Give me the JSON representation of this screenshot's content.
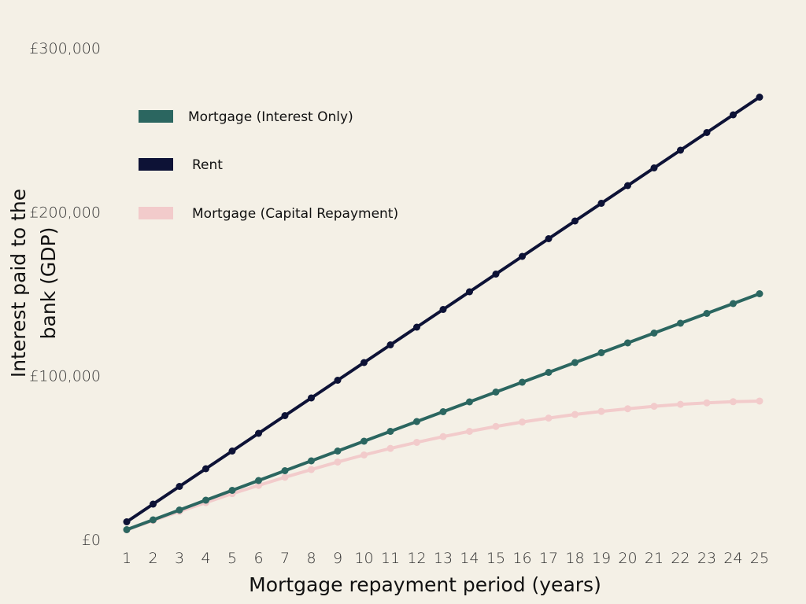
{
  "chart_data": {
    "type": "line",
    "title": "",
    "xlabel": "Mortgage repayment period (years)",
    "ylabel": "Interest paid to the bank (GDP)",
    "ylabel_lines": [
      "Interest paid to the",
      "bank (GDP)"
    ],
    "ylim": [
      0,
      300000
    ],
    "xlim": [
      1,
      25
    ],
    "grid": false,
    "legend_position": "top-left",
    "x": [
      1,
      2,
      3,
      4,
      5,
      6,
      7,
      8,
      9,
      10,
      11,
      12,
      13,
      14,
      15,
      16,
      17,
      18,
      19,
      20,
      21,
      22,
      23,
      24,
      25
    ],
    "y_ticks": [
      {
        "value": 0,
        "label": "£0"
      },
      {
        "value": 100000,
        "label": "£100,000"
      },
      {
        "value": 200000,
        "label": "£200,000"
      },
      {
        "value": 300000,
        "label": "£300,000"
      }
    ],
    "series": [
      {
        "name": "Mortgage (Interest Only)",
        "color": "#2b6660",
        "values": [
          6000,
          12000,
          18000,
          24000,
          30000,
          36000,
          42000,
          48000,
          54000,
          60000,
          66000,
          72000,
          78000,
          84000,
          90000,
          96000,
          102000,
          108000,
          114000,
          120000,
          126000,
          132000,
          138000,
          144000,
          150000
        ]
      },
      {
        "name": "Rent",
        "color": "#0d1236",
        "values": [
          10800,
          21600,
          32400,
          43200,
          54000,
          64800,
          75600,
          86400,
          97200,
          108000,
          118800,
          129600,
          140400,
          151200,
          162000,
          172800,
          183600,
          194400,
          205200,
          216000,
          226800,
          237600,
          248400,
          259200,
          270000
        ]
      },
      {
        "name": "Mortgage (Capital Repayment)",
        "color": "#f2cbcb",
        "values": [
          5900,
          11600,
          17100,
          22500,
          28000,
          33000,
          38000,
          42700,
          47300,
          51600,
          55600,
          59300,
          62800,
          66000,
          69000,
          71700,
          74100,
          76300,
          78200,
          79800,
          81300,
          82500,
          83400,
          84100,
          84500
        ]
      }
    ]
  }
}
